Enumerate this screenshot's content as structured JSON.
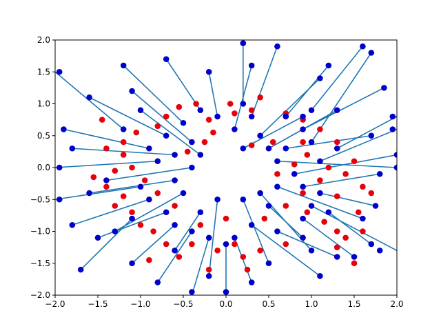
{
  "chart_data": {
    "type": "scatter",
    "title": "",
    "xlabel": "",
    "ylabel": "",
    "xlim": [
      -2.0,
      2.0
    ],
    "ylim": [
      -2.0,
      2.0
    ],
    "x_ticks": [
      "−2.0",
      "−1.5",
      "−1.0",
      "−0.5",
      "0.0",
      "0.5",
      "1.0",
      "1.5",
      "2.0"
    ],
    "y_ticks": [
      "−2.0",
      "−1.5",
      "−1.0",
      "−0.5",
      "0.0",
      "0.5",
      "1.0",
      "1.5",
      "2.0"
    ],
    "grid": false,
    "legend": "none",
    "description_colors": {
      "line": "#1f77b4",
      "red_points": "#e8000b",
      "blue_points": "#0000cc"
    },
    "segments": [
      [
        1.0,
        0.4,
        1.7,
        1.8
      ],
      [
        0.2,
        1.0,
        0.2,
        2.0
      ],
      [
        0.7,
        0.3,
        1.7,
        0.5
      ],
      [
        0.9,
        0.6,
        1.85,
        1.25
      ],
      [
        0.5,
        0.3,
        1.3,
        0.9
      ],
      [
        0.6,
        0.1,
        2.0,
        0.0
      ],
      [
        0.8,
        -0.1,
        2.0,
        0.2
      ],
      [
        0.9,
        -0.3,
        1.8,
        -0.1
      ],
      [
        1.1,
        -0.4,
        1.75,
        -0.6
      ],
      [
        1.0,
        -0.6,
        2.0,
        -1.3
      ],
      [
        0.9,
        -0.8,
        1.5,
        -1.4
      ],
      [
        1.2,
        -0.7,
        1.7,
        -1.2
      ],
      [
        0.6,
        -1.0,
        1.3,
        -1.4
      ],
      [
        0.3,
        -0.9,
        1.1,
        -1.7
      ],
      [
        0.5,
        -0.6,
        0.9,
        -1.1
      ],
      [
        0.1,
        -1.1,
        0.3,
        -1.8
      ],
      [
        0.0,
        -1.2,
        0.0,
        -2.0
      ],
      [
        -0.2,
        -1.1,
        -0.4,
        -2.0
      ],
      [
        -0.4,
        -1.0,
        -0.8,
        -1.8
      ],
      [
        -0.6,
        -0.9,
        -1.1,
        -1.5
      ],
      [
        -0.3,
        -0.7,
        -0.6,
        -1.3
      ],
      [
        -0.7,
        -0.7,
        -1.5,
        -1.1
      ],
      [
        -0.9,
        -0.5,
        -1.8,
        -0.9
      ],
      [
        -1.0,
        -0.3,
        -2.0,
        -0.5
      ],
      [
        -0.6,
        -0.2,
        -1.6,
        -0.4
      ],
      [
        -0.8,
        0.1,
        -2.0,
        0.0
      ],
      [
        -0.9,
        0.3,
        -1.9,
        0.6
      ],
      [
        -0.7,
        0.5,
        -1.6,
        1.1
      ],
      [
        -0.5,
        0.7,
        -1.2,
        1.6
      ],
      [
        -0.3,
        0.9,
        -0.7,
        1.7
      ],
      [
        -0.1,
        0.8,
        -0.2,
        1.5
      ],
      [
        -0.4,
        0.4,
        -1.1,
        1.2
      ],
      [
        -0.6,
        0.2,
        -1.8,
        0.3
      ],
      [
        0.1,
        0.6,
        0.3,
        1.6
      ],
      [
        0.3,
        0.8,
        0.6,
        1.9
      ],
      [
        0.4,
        0.5,
        1.1,
        1.4
      ],
      [
        0.2,
        0.3,
        0.9,
        0.8
      ],
      [
        0.7,
        0.8,
        1.2,
        1.6
      ],
      [
        1.1,
        0.1,
        2.0,
        0.6
      ],
      [
        0.6,
        -0.3,
        1.6,
        -0.8
      ],
      [
        0.4,
        -0.4,
        1.0,
        -1.3
      ],
      [
        0.2,
        -0.5,
        0.5,
        -1.5
      ],
      [
        -0.1,
        -0.5,
        -0.2,
        -1.7
      ],
      [
        -0.5,
        -0.4,
        -1.3,
        -1.0
      ],
      [
        -0.4,
        0.0,
        -1.4,
        -0.2
      ],
      [
        -0.3,
        0.2,
        -1.0,
        0.9
      ],
      [
        -1.2,
        0.6,
        -2.0,
        1.5
      ],
      [
        -1.1,
        -0.8,
        -1.7,
        -1.6
      ],
      [
        1.3,
        0.3,
        2.0,
        0.8
      ],
      [
        1.0,
        0.9,
        1.6,
        1.9
      ]
    ],
    "red_points": [
      [
        0.05,
        1.0
      ],
      [
        0.1,
        0.85
      ],
      [
        0.4,
        1.1
      ],
      [
        0.3,
        0.9
      ],
      [
        0.7,
        0.85
      ],
      [
        0.9,
        0.75
      ],
      [
        1.1,
        0.6
      ],
      [
        1.3,
        0.4
      ],
      [
        0.95,
        0.2
      ],
      [
        0.8,
        0.05
      ],
      [
        1.2,
        0.0
      ],
      [
        1.4,
        -0.1
      ],
      [
        1.1,
        -0.2
      ],
      [
        0.9,
        -0.4
      ],
      [
        1.3,
        -0.45
      ],
      [
        1.6,
        -0.3
      ],
      [
        0.7,
        -0.6
      ],
      [
        0.95,
        -0.7
      ],
      [
        1.15,
        -0.85
      ],
      [
        1.3,
        -1.0
      ],
      [
        1.6,
        -1.0
      ],
      [
        1.4,
        -1.1
      ],
      [
        1.5,
        -1.5
      ],
      [
        1.3,
        -1.25
      ],
      [
        0.45,
        -0.8
      ],
      [
        0.7,
        -1.2
      ],
      [
        0.4,
        -1.3
      ],
      [
        0.2,
        -1.4
      ],
      [
        0.1,
        -1.2
      ],
      [
        0.25,
        -1.6
      ],
      [
        -0.1,
        -1.3
      ],
      [
        -0.2,
        -1.6
      ],
      [
        -0.4,
        -1.2
      ],
      [
        -0.55,
        -1.4
      ],
      [
        -0.7,
        -1.2
      ],
      [
        -0.85,
        -1.0
      ],
      [
        -1.0,
        -0.9
      ],
      [
        -1.1,
        -0.7
      ],
      [
        -1.3,
        -0.6
      ],
      [
        -1.2,
        -0.45
      ],
      [
        -1.4,
        -0.3
      ],
      [
        -1.55,
        -0.15
      ],
      [
        -1.3,
        -0.05
      ],
      [
        -1.1,
        0.0
      ],
      [
        -1.2,
        0.2
      ],
      [
        -1.4,
        0.3
      ],
      [
        -1.2,
        0.4
      ],
      [
        -1.05,
        0.55
      ],
      [
        -0.8,
        0.65
      ],
      [
        -0.7,
        0.8
      ],
      [
        -0.55,
        0.95
      ],
      [
        -0.35,
        1.0
      ],
      [
        -0.2,
        0.75
      ],
      [
        -0.15,
        0.55
      ],
      [
        -0.25,
        0.4
      ],
      [
        -0.45,
        0.25
      ],
      [
        0.55,
        0.4
      ],
      [
        0.3,
        0.35
      ],
      [
        1.55,
        -0.7
      ],
      [
        -0.9,
        -1.45
      ],
      [
        -1.45,
        0.75
      ],
      [
        -0.95,
        -0.2
      ],
      [
        0.6,
        -0.1
      ],
      [
        1.7,
        -0.4
      ],
      [
        0.9,
        0.4
      ],
      [
        1.5,
        0.1
      ],
      [
        -0.3,
        -0.9
      ],
      [
        0.0,
        -0.8
      ],
      [
        -0.6,
        -0.6
      ],
      [
        -0.8,
        -0.4
      ]
    ],
    "blue_points": [
      [
        1.7,
        1.8
      ],
      [
        0.2,
        1.95
      ],
      [
        1.7,
        0.5
      ],
      [
        1.85,
        1.25
      ],
      [
        1.3,
        0.9
      ],
      [
        2.0,
        0.0
      ],
      [
        2.0,
        0.2
      ],
      [
        1.8,
        -0.1
      ],
      [
        1.75,
        -0.6
      ],
      [
        1.8,
        -1.3
      ],
      [
        1.5,
        -1.4
      ],
      [
        1.7,
        -1.2
      ],
      [
        1.3,
        -1.4
      ],
      [
        1.1,
        -1.7
      ],
      [
        0.9,
        -1.1
      ],
      [
        0.3,
        -1.8
      ],
      [
        0.0,
        -1.95
      ],
      [
        -0.4,
        -1.95
      ],
      [
        -0.8,
        -1.8
      ],
      [
        -1.1,
        -1.5
      ],
      [
        -0.6,
        -1.3
      ],
      [
        -1.5,
        -1.1
      ],
      [
        -1.8,
        -0.9
      ],
      [
        -1.95,
        -0.5
      ],
      [
        -1.6,
        -0.4
      ],
      [
        -1.95,
        0.0
      ],
      [
        -1.9,
        0.6
      ],
      [
        -1.6,
        1.1
      ],
      [
        -1.2,
        1.6
      ],
      [
        -0.7,
        1.7
      ],
      [
        -0.2,
        1.5
      ],
      [
        -1.1,
        1.2
      ],
      [
        -1.8,
        0.3
      ],
      [
        0.3,
        1.6
      ],
      [
        0.6,
        1.9
      ],
      [
        1.1,
        1.4
      ],
      [
        0.9,
        0.8
      ],
      [
        1.2,
        1.6
      ],
      [
        1.95,
        0.6
      ],
      [
        1.6,
        -0.8
      ],
      [
        1.0,
        -1.3
      ],
      [
        0.5,
        -1.5
      ],
      [
        -0.2,
        -1.7
      ],
      [
        -1.3,
        -1.0
      ],
      [
        -1.4,
        -0.2
      ],
      [
        -1.0,
        0.9
      ],
      [
        -1.95,
        1.5
      ],
      [
        -1.7,
        -1.6
      ],
      [
        1.95,
        0.8
      ],
      [
        1.6,
        1.9
      ],
      [
        1.0,
        0.4
      ],
      [
        0.2,
        1.0
      ],
      [
        0.7,
        0.3
      ],
      [
        0.9,
        0.6
      ],
      [
        0.5,
        0.3
      ],
      [
        0.6,
        0.1
      ],
      [
        0.8,
        -0.1
      ],
      [
        0.9,
        -0.3
      ],
      [
        1.1,
        -0.4
      ],
      [
        1.0,
        -0.6
      ],
      [
        0.9,
        -0.8
      ],
      [
        1.2,
        -0.7
      ],
      [
        0.6,
        -1.0
      ],
      [
        0.3,
        -0.9
      ],
      [
        0.5,
        -0.6
      ],
      [
        0.1,
        -1.1
      ],
      [
        0.0,
        -1.2
      ],
      [
        -0.2,
        -1.1
      ],
      [
        -0.4,
        -1.0
      ],
      [
        -0.6,
        -0.9
      ],
      [
        -0.3,
        -0.7
      ],
      [
        -0.7,
        -0.7
      ],
      [
        -0.9,
        -0.5
      ],
      [
        -1.0,
        -0.3
      ],
      [
        -0.6,
        -0.2
      ],
      [
        -0.8,
        0.1
      ],
      [
        -0.9,
        0.3
      ],
      [
        -0.7,
        0.5
      ],
      [
        -0.5,
        0.7
      ],
      [
        -0.3,
        0.9
      ],
      [
        -0.1,
        0.8
      ],
      [
        -0.4,
        0.4
      ],
      [
        -0.6,
        0.2
      ],
      [
        0.1,
        0.6
      ],
      [
        0.3,
        0.8
      ],
      [
        0.4,
        0.5
      ],
      [
        0.2,
        0.3
      ],
      [
        0.7,
        0.8
      ],
      [
        1.1,
        0.1
      ],
      [
        0.6,
        -0.3
      ],
      [
        0.4,
        -0.4
      ],
      [
        0.2,
        -0.5
      ],
      [
        -0.1,
        -0.5
      ],
      [
        -0.5,
        -0.4
      ],
      [
        -0.4,
        0.0
      ],
      [
        -0.3,
        0.2
      ],
      [
        -1.2,
        0.6
      ],
      [
        -1.1,
        -0.8
      ],
      [
        1.3,
        0.3
      ],
      [
        1.0,
        0.9
      ]
    ]
  }
}
